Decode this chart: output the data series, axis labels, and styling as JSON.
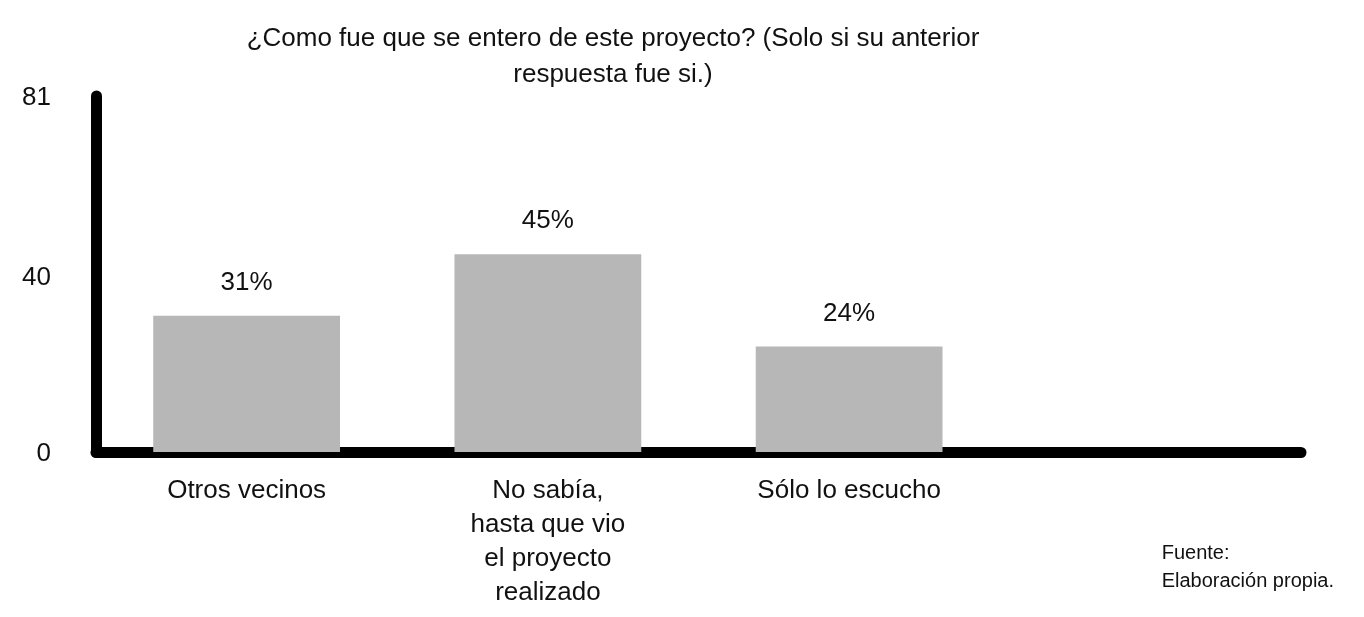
{
  "chart_data": {
    "type": "bar",
    "title": "¿Como fue que se entero de este proyecto? (Solo si su anterior\nrespuesta fue si.)",
    "categories": [
      "Otros vecinos",
      "No sabía,\nhasta que vio\nel proyecto\nrealizado",
      "Sólo lo escucho",
      null
    ],
    "values": [
      31,
      45,
      24,
      null
    ],
    "value_labels": [
      "31%",
      "45%",
      "24%",
      null
    ],
    "color": "#b7b7b7",
    "ylim": [
      0,
      81
    ],
    "yticks": [
      0,
      40,
      81
    ],
    "grid": false,
    "annotations": [
      "Fuente:\nElaboración propia."
    ]
  }
}
